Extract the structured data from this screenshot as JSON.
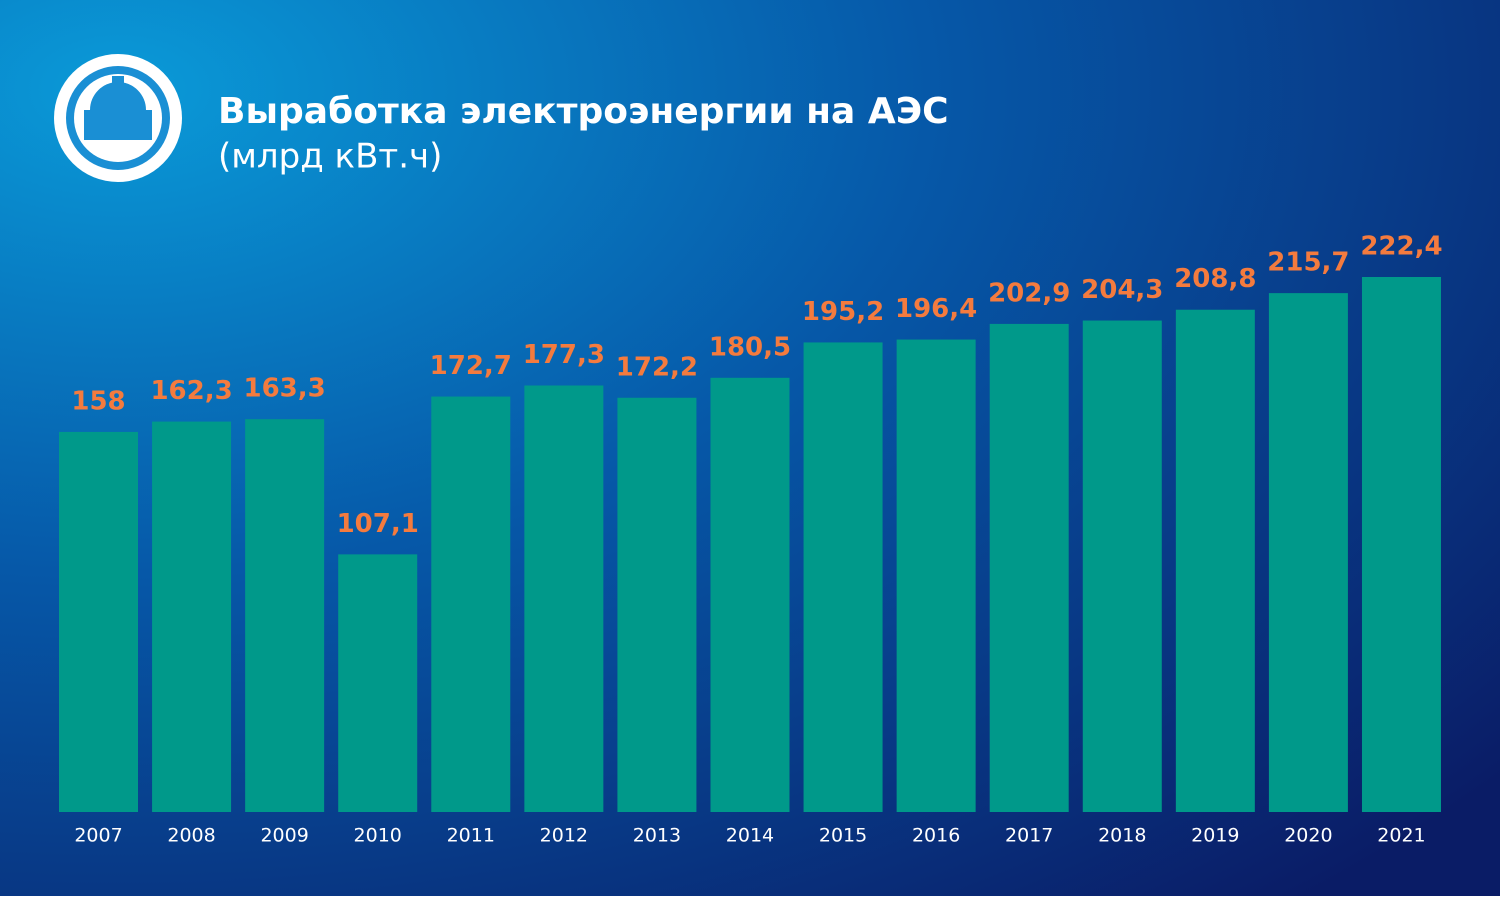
{
  "chart_data": {
    "type": "bar",
    "title": "Выработка электроэнергии на АЭС",
    "subtitle": "(млрд кВт.ч)",
    "categories": [
      "2007",
      "2008",
      "2009",
      "2010",
      "2011",
      "2012",
      "2013",
      "2014",
      "2015",
      "2016",
      "2017",
      "2018",
      "2019",
      "2020",
      "2021"
    ],
    "values": [
      158,
      162.3,
      163.3,
      107.1,
      172.7,
      177.3,
      172.2,
      180.5,
      195.2,
      196.4,
      202.9,
      204.3,
      208.8,
      215.7,
      222.4
    ],
    "value_labels": [
      "158",
      "162,3",
      "163,3",
      "107,1",
      "172,7",
      "177,3",
      "172,2",
      "180,5",
      "195,2",
      "196,4",
      "202,9",
      "204,3",
      "208,8",
      "215,7",
      "222,4"
    ],
    "color": "#00998a",
    "label_color": "#f47b3e"
  }
}
